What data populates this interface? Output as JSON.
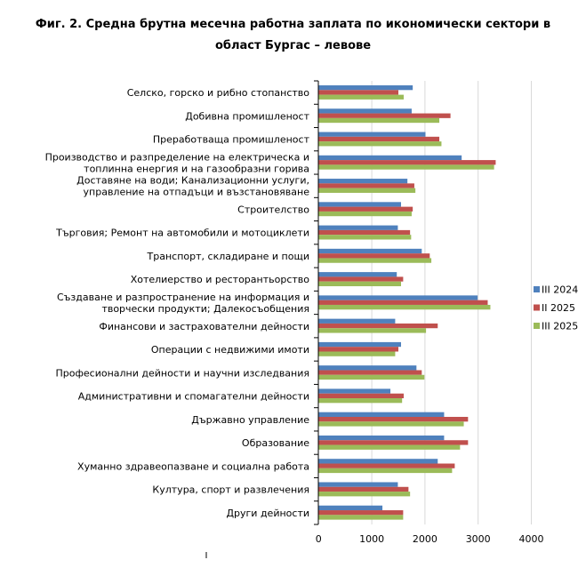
{
  "title_line1": "Фиг. 2. Средна брутна месечна работна заплата по икономически сектори в",
  "title_line2": "област Бургас – левове",
  "colors": {
    "III 2024": "#4f81bd",
    "II 2025": "#c0504d",
    "III 2025": "#9bbb59"
  },
  "chart_data": {
    "type": "bar",
    "orientation": "horizontal",
    "title": "Фиг. 2. Средна брутна месечна работна заплата по икономически сектори в област Бургас – левове",
    "xlim": [
      0,
      4000
    ],
    "xticks": [
      0,
      1000,
      2000,
      3000,
      4000
    ],
    "grid": true,
    "legend_position": "right",
    "categories": [
      [
        "Селско, горско и рибно стопанство"
      ],
      [
        "Добивна промишленост"
      ],
      [
        "Преработваща промишленост"
      ],
      [
        "Производство и разпределение на електрическа и",
        "топлинна енергия и на газообразни горива"
      ],
      [
        "Доставяне на води; Канализационни услуги,",
        "управление на отпадъци и възстановяване"
      ],
      [
        "Строителство"
      ],
      [
        "Търговия; Ремонт на автомобили и мотоциклети"
      ],
      [
        "Транспорт, складиране и пощи"
      ],
      [
        "Хотелиерство и ресторантьорство"
      ],
      [
        "Създаване и разпространение на информация и",
        "творчески продукти; Далекосъобщения"
      ],
      [
        "Финансови и застрахователни дейности"
      ],
      [
        "Операции с недвижими имоти"
      ],
      [
        "Професионални дейности и научни изследвания"
      ],
      [
        "Административни и спомагателни дейности"
      ],
      [
        "Държавно управление"
      ],
      [
        "Образование"
      ],
      [
        "Хуманно здравеопазване и социална работа"
      ],
      [
        "Култура, спорт и развлечения"
      ],
      [
        "Други дейности"
      ]
    ],
    "series": [
      {
        "name": "III 2024",
        "values": [
          1770,
          1750,
          2010,
          2690,
          1670,
          1550,
          1490,
          1940,
          1470,
          2990,
          1440,
          1550,
          1840,
          1350,
          2360,
          2360,
          2240,
          1490,
          1200
        ]
      },
      {
        "name": "II 2025",
        "values": [
          1500,
          2480,
          2270,
          3330,
          1800,
          1770,
          1720,
          2090,
          1590,
          3180,
          2240,
          1500,
          1940,
          1600,
          2810,
          2810,
          2560,
          1690,
          1590
        ]
      },
      {
        "name": "III 2025",
        "values": [
          1600,
          2270,
          2310,
          3300,
          1820,
          1750,
          1740,
          2120,
          1550,
          3230,
          2020,
          1440,
          1990,
          1570,
          2730,
          2660,
          2510,
          1720,
          1590
        ]
      }
    ]
  }
}
